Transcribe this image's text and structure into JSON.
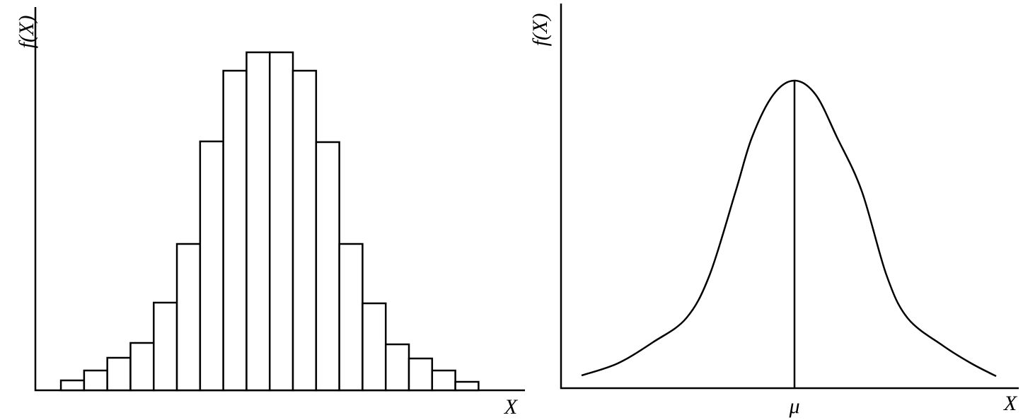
{
  "chart_data": [
    {
      "type": "histogram",
      "y_label": "f(X)",
      "x_label": "X",
      "bins": [
        0,
        1,
        2,
        3,
        4,
        5,
        6,
        7,
        8,
        9,
        10,
        11,
        12,
        13,
        14,
        15,
        16,
        17,
        18
      ],
      "counts": [
        14,
        28,
        46,
        67,
        124,
        207,
        352,
        452,
        478,
        478,
        452,
        351,
        207,
        123,
        65,
        45,
        28,
        12
      ],
      "xlim": [
        -1.1,
        20
      ],
      "ylim": [
        0,
        542
      ],
      "color": "#ffffff"
    },
    {
      "type": "line",
      "y_label": "f(X)",
      "x_label": "X",
      "x": [
        -301,
        -250,
        -200,
        -153,
        -120,
        -83,
        -60,
        -30,
        0,
        30,
        60,
        95,
        130,
        160,
        210,
        250,
        285
      ],
      "values": [
        18,
        35,
        65,
        99,
        160,
        279,
        355,
        415,
        435,
        415,
        355,
        279,
        160,
        99,
        60,
        35,
        17
      ],
      "mean_x": 0,
      "mean_label": "μ",
      "xlim": [
        -330,
        317
      ],
      "ylim": [
        0,
        544
      ],
      "color": "#000000"
    }
  ]
}
